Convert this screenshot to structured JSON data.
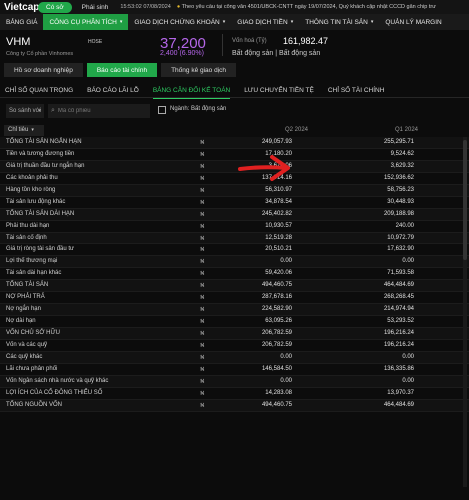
{
  "topbar": {
    "logo": "Vietcap",
    "status_pill": "Có sở",
    "session_pill": "Phái sinh",
    "clock": "15:53:02 07/08/2024",
    "ticker_text": "Theo yêu cầu tại công văn 4501/UBCK-CNTT ngày 19/07/2024, Quý khách cập nhật CCCD gắn chip trư"
  },
  "nav": {
    "items": [
      {
        "label": "BẢNG GIÁ"
      },
      {
        "label": "CÔNG CỤ PHÂN TÍCH",
        "caret": "▾"
      },
      {
        "label": "GIAO DỊCH CHỨNG KHOÁN",
        "caret": "▾"
      },
      {
        "label": "GIAO DỊCH TIỀN",
        "caret": "▾"
      },
      {
        "label": "THÔNG TIN TÀI SẢN",
        "caret": "▾"
      },
      {
        "label": "QUẢN LÝ MARGIN"
      }
    ]
  },
  "stock": {
    "symbol": "VHM",
    "exchange": "HOSE",
    "company": "Công ty Cổ phần Vinhomes",
    "price": "37,200",
    "change": "2,400 (6.90%)",
    "cap_label": "Vốn hoá (Tỷ)",
    "cap_value": "161,982.47",
    "industry": "Bất động sản | Bất động sản",
    "price_color": "#b466e8"
  },
  "subtabs": [
    {
      "label": "Hồ sơ doanh nghiệp"
    },
    {
      "label": "Báo cáo tài chính"
    },
    {
      "label": "Thống kê giao dịch"
    }
  ],
  "sectabs": [
    {
      "label": "CHỈ SỐ QUAN TRỌNG"
    },
    {
      "label": "BÁO CÁO LÃI LỖ"
    },
    {
      "label": "BẢNG CÂN ĐỐI KẾ TOÁN"
    },
    {
      "label": "LƯU CHUYỂN TIỀN TỆ"
    },
    {
      "label": "CHỈ SỐ TÀI CHÍNH"
    }
  ],
  "filters": {
    "compare_label": "So sánh với",
    "search_placeholder": "Mã cổ phiếu",
    "checkbox_label": "Ngành: Bất động sản"
  },
  "table": {
    "name_header": "Chỉ tiêu",
    "q2_header": "Q2 2024",
    "q1_header": "Q1 2024",
    "rows": [
      {
        "name": "TỔNG TÀI SẢN NGẮN HẠN",
        "q2": "249,057.93",
        "q1": "255,295.71"
      },
      {
        "name": "Tiền và tương đương tiền",
        "q2": "17,180.20",
        "q1": "9,524.62"
      },
      {
        "name": "Giá trị thuần đầu tư ngắn hạn",
        "q2": "3,674.06",
        "q1": "3,629.32"
      },
      {
        "name": "Các khoản phải thu",
        "q2": "137,014.16",
        "q1": "152,936.62"
      },
      {
        "name": "Hàng tồn kho ròng",
        "q2": "56,310.97",
        "q1": "58,756.23"
      },
      {
        "name": "Tài sản lưu động khác",
        "q2": "34,878.54",
        "q1": "30,448.93"
      },
      {
        "name": "TỔNG TÀI SẢN DÀI HẠN",
        "q2": "245,402.82",
        "q1": "209,188.98"
      },
      {
        "name": "Phải thu dài hạn",
        "q2": "10,930.57",
        "q1": "240.00"
      },
      {
        "name": "Tài sản cố định",
        "q2": "12,519.28",
        "q1": "10,972.79"
      },
      {
        "name": "Giá trị ròng tài sản đầu tư",
        "q2": "20,510.21",
        "q1": "17,632.90"
      },
      {
        "name": "Lợi thế thương mại",
        "q2": "0.00",
        "q1": "0.00"
      },
      {
        "name": "Tài sản dài hạn khác",
        "q2": "59,420.06",
        "q1": "71,593.58"
      },
      {
        "name": "TỔNG TÀI SẢN",
        "q2": "494,460.75",
        "q1": "464,484.69"
      },
      {
        "name": "NỢ PHẢI TRẢ",
        "q2": "287,678.16",
        "q1": "268,268.45"
      },
      {
        "name": "Nợ ngắn hạn",
        "q2": "224,582.90",
        "q1": "214,974.94"
      },
      {
        "name": "Nợ dài hạn",
        "q2": "63,095.26",
        "q1": "53,293.52"
      },
      {
        "name": "VỐN CHỦ SỞ HỮU",
        "q2": "206,782.59",
        "q1": "196,216.24"
      },
      {
        "name": "Vốn và các quỹ",
        "q2": "206,782.59",
        "q1": "196,216.24"
      },
      {
        "name": "Các quỹ khác",
        "q2": "0.00",
        "q1": "0.00"
      },
      {
        "name": "Lãi chưa phân phối",
        "q2": "146,584.50",
        "q1": "136,335.86"
      },
      {
        "name": "Vốn Ngân sách nhà nước và quỹ khác",
        "q2": "0.00",
        "q1": "0.00"
      },
      {
        "name": "LỢI ÍCH CỦA CỔ ĐÔNG THIỂU SỐ",
        "q2": "14,283.08",
        "q1": "13,970.37"
      },
      {
        "name": "TỔNG NGUỒN VỐN",
        "q2": "494,460.75",
        "q1": "464,484.69"
      }
    ]
  }
}
